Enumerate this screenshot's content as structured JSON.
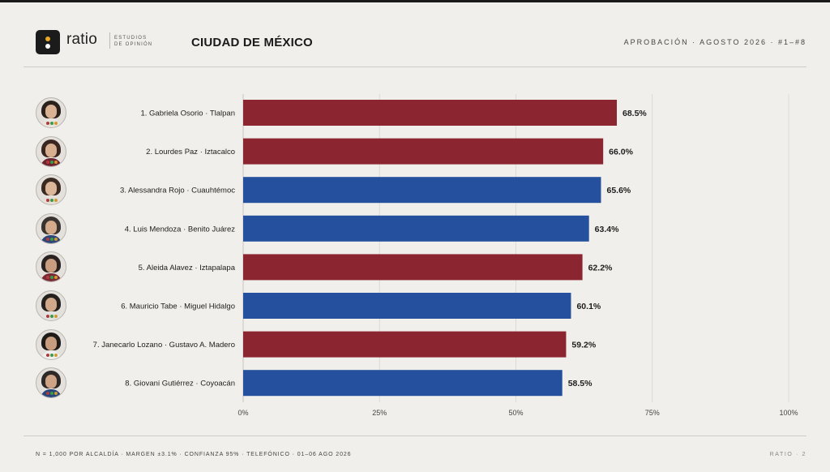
{
  "brand": {
    "name": "ratio",
    "subtitle_line1": "ESTUDIOS",
    "subtitle_line2": "DE OPINIÓN"
  },
  "header": {
    "title": "CIUDAD DE MÉXICO",
    "right": "APROBACIÓN · AGOSTO 2026 · #1–#8"
  },
  "footer": {
    "left": "N = 1,000 POR ALCALDÍA · MARGEN ±3.1% · CONFIANZA 95% · TELEFÓNICO · 01–06 AGO 2026",
    "right": "RATIO · 2"
  },
  "colors": {
    "party_red": "#8b2530",
    "party_blue": "#24509d",
    "background": "#f1efeb",
    "text": "#1d1d1d",
    "grid": "#dedad4"
  },
  "chart_data": {
    "type": "bar",
    "orientation": "horizontal",
    "categories": [
      "1.  Gabriela Osorio · Tlalpan",
      "2.  Lourdes Paz · Iztacalco",
      "3.  Alessandra Rojo · Cuauhtémoc",
      "4.  Luis Mendoza · Benito Juárez",
      "5.  Aleida Alavez · Iztapalapa",
      "6.  Mauricio Tabe · Miguel Hidalgo",
      "7.  Janecarlo Lozano · Gustavo A. Madero",
      "8.  Giovani Gutiérrez · Coyoacán"
    ],
    "values": [
      68.5,
      66.0,
      65.6,
      63.4,
      62.2,
      60.1,
      59.2,
      58.5
    ],
    "value_labels": [
      "68.5%",
      "66.0%",
      "65.6%",
      "63.4%",
      "62.2%",
      "60.1%",
      "59.2%",
      "58.5%"
    ],
    "bar_colors": [
      "#8b2530",
      "#8b2530",
      "#24509d",
      "#24509d",
      "#8b2530",
      "#24509d",
      "#8b2530",
      "#24509d"
    ],
    "xlim": [
      0,
      100
    ],
    "xticks": [
      0,
      25,
      50,
      75,
      100
    ],
    "xtick_labels": [
      "0%",
      "25%",
      "50%",
      "75%",
      "100%"
    ],
    "grid": "vertical",
    "title": "",
    "xlabel": "",
    "ylabel": ""
  },
  "avatars": [
    {
      "name": "avatar-gabriela-osorio",
      "hair": "#2b211c",
      "body": "#e9e4de",
      "skin": "#d9b193"
    },
    {
      "name": "avatar-lourdes-paz",
      "hair": "#3a2620",
      "body": "#6e2430",
      "skin": "#d8ae90"
    },
    {
      "name": "avatar-alessandra-rojo",
      "hair": "#3b2a22",
      "body": "#e4ded6",
      "skin": "#dcb699"
    },
    {
      "name": "avatar-luis-mendoza",
      "hair": "#3a3430",
      "body": "#2d4677",
      "skin": "#d4ab8c"
    },
    {
      "name": "avatar-aleida-alavez",
      "hair": "#2a2220",
      "body": "#7a2a35",
      "skin": "#c99d80"
    },
    {
      "name": "avatar-mauricio-tabe",
      "hair": "#25211e",
      "body": "#e2e2e2",
      "skin": "#d1a88a"
    },
    {
      "name": "avatar-janecarlo-lozano",
      "hair": "#1f1b19",
      "body": "#eeeeee",
      "skin": "#c89c7e"
    },
    {
      "name": "avatar-giovani-gutierrez",
      "hair": "#2e2926",
      "body": "#28467e",
      "skin": "#cfa385"
    }
  ]
}
